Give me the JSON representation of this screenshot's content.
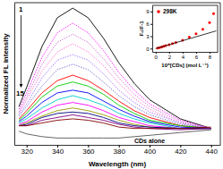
{
  "chart_data": [
    {
      "type": "line",
      "x_label": "Wavelength (nm)",
      "y_label": "Normalized FL intensity",
      "x": [
        315,
        320,
        330,
        340,
        350,
        360,
        370,
        380,
        390,
        400,
        420,
        440
      ],
      "xlim": [
        312,
        446
      ],
      "xticks": [
        320,
        340,
        360,
        380,
        400,
        420,
        440
      ],
      "ylim": [
        0,
        1.04
      ],
      "yticks": [],
      "tick_labels": "x",
      "series": [
        {
          "name": "1",
          "color": "#000000",
          "line_style": "solid",
          "values": [
            0.28,
            0.42,
            0.72,
            0.93,
            1.0,
            0.93,
            0.78,
            0.6,
            0.45,
            0.33,
            0.19,
            0.12
          ]
        },
        {
          "color": "#ff00ff",
          "line_style": "dotted",
          "values": [
            0.26,
            0.38,
            0.64,
            0.82,
            0.89,
            0.82,
            0.69,
            0.53,
            0.4,
            0.3,
            0.18,
            0.12
          ]
        },
        {
          "color": "#cc66cc",
          "line_style": "dotted",
          "values": [
            0.24,
            0.35,
            0.59,
            0.75,
            0.81,
            0.75,
            0.63,
            0.49,
            0.37,
            0.28,
            0.17,
            0.12
          ]
        },
        {
          "color": "#ff66cc",
          "line_style": "dotted",
          "values": [
            0.23,
            0.33,
            0.54,
            0.68,
            0.74,
            0.68,
            0.58,
            0.45,
            0.34,
            0.26,
            0.16,
            0.12
          ]
        },
        {
          "color": "#9966ff",
          "line_style": "dotted",
          "values": [
            0.22,
            0.3,
            0.49,
            0.62,
            0.66,
            0.62,
            0.52,
            0.4,
            0.31,
            0.24,
            0.16,
            0.12
          ]
        },
        {
          "color": "#6666cc",
          "line_style": "dotted",
          "values": [
            0.21,
            0.28,
            0.43,
            0.55,
            0.59,
            0.55,
            0.46,
            0.36,
            0.28,
            0.22,
            0.15,
            0.12
          ]
        },
        {
          "color": "#ff0000",
          "line_style": "solid",
          "values": [
            0.19,
            0.25,
            0.38,
            0.47,
            0.51,
            0.47,
            0.4,
            0.32,
            0.25,
            0.2,
            0.14,
            0.12
          ]
        },
        {
          "color": "#00cc00",
          "line_style": "solid",
          "values": [
            0.18,
            0.23,
            0.35,
            0.43,
            0.46,
            0.43,
            0.37,
            0.29,
            0.23,
            0.18,
            0.14,
            0.12
          ]
        },
        {
          "color": "#0000ff",
          "line_style": "solid",
          "values": [
            0.17,
            0.21,
            0.31,
            0.38,
            0.4,
            0.38,
            0.32,
            0.26,
            0.21,
            0.17,
            0.13,
            0.12
          ]
        },
        {
          "color": "#00cccc",
          "line_style": "solid",
          "values": [
            0.16,
            0.19,
            0.27,
            0.33,
            0.36,
            0.33,
            0.29,
            0.23,
            0.19,
            0.16,
            0.12,
            0.12
          ]
        },
        {
          "color": "#ff00ff",
          "line_style": "solid",
          "values": [
            0.15,
            0.17,
            0.24,
            0.29,
            0.31,
            0.29,
            0.25,
            0.2,
            0.17,
            0.14,
            0.12,
            0.12
          ]
        },
        {
          "color": "#999900",
          "line_style": "solid",
          "values": [
            0.14,
            0.16,
            0.21,
            0.25,
            0.27,
            0.25,
            0.22,
            0.18,
            0.15,
            0.13,
            0.12,
            0.12
          ]
        },
        {
          "color": "#000080",
          "line_style": "solid",
          "values": [
            0.14,
            0.15,
            0.2,
            0.23,
            0.24,
            0.23,
            0.2,
            0.16,
            0.14,
            0.13,
            0.12,
            0.12
          ]
        },
        {
          "color": "#800080",
          "line_style": "solid",
          "values": [
            0.14,
            0.14,
            0.18,
            0.2,
            0.22,
            0.2,
            0.18,
            0.15,
            0.13,
            0.12,
            0.11,
            0.12
          ]
        },
        {
          "name": "15",
          "color": "#800000",
          "line_style": "solid",
          "values": [
            0.14,
            0.14,
            0.16,
            0.18,
            0.19,
            0.18,
            0.16,
            0.13,
            0.12,
            0.12,
            0.12,
            0.13
          ]
        },
        {
          "name": "CDs alone",
          "color": "#555555",
          "line_style": "solid",
          "values": [
            0.1,
            0.08,
            0.06,
            0.05,
            0.05,
            0.05,
            0.05,
            0.05,
            0.06,
            0.07,
            0.09,
            0.11
          ]
        }
      ]
    },
    {
      "type": "scatter",
      "x_label": "10⁵[CDs] (mol L⁻¹)",
      "y_label": "F₀/F-1",
      "xlim": [
        -0.5,
        9.2
      ],
      "xticks": [
        0,
        2,
        4,
        6,
        8
      ],
      "ylim": [
        -0.8,
        10.5
      ],
      "yticks": [
        0,
        3,
        6,
        9
      ],
      "legend": "upper left",
      "series": [
        {
          "name": "298K",
          "type": "scatter",
          "marker": "circle",
          "color": "#ff0000",
          "x": [
            0.3,
            0.6,
            0.9,
            1.2,
            1.5,
            2,
            2.5,
            3,
            4,
            5,
            6,
            7,
            8,
            8.6
          ],
          "values": [
            0.1,
            0.25,
            0.4,
            0.55,
            0.7,
            0.95,
            1.2,
            1.5,
            2.0,
            2.8,
            3.6,
            4.7,
            6.3,
            8.5
          ]
        },
        {
          "type": "line",
          "line_style": "solid",
          "color": "#000000",
          "x": [
            0,
            9
          ],
          "values": [
            0,
            4.3
          ]
        }
      ]
    }
  ]
}
